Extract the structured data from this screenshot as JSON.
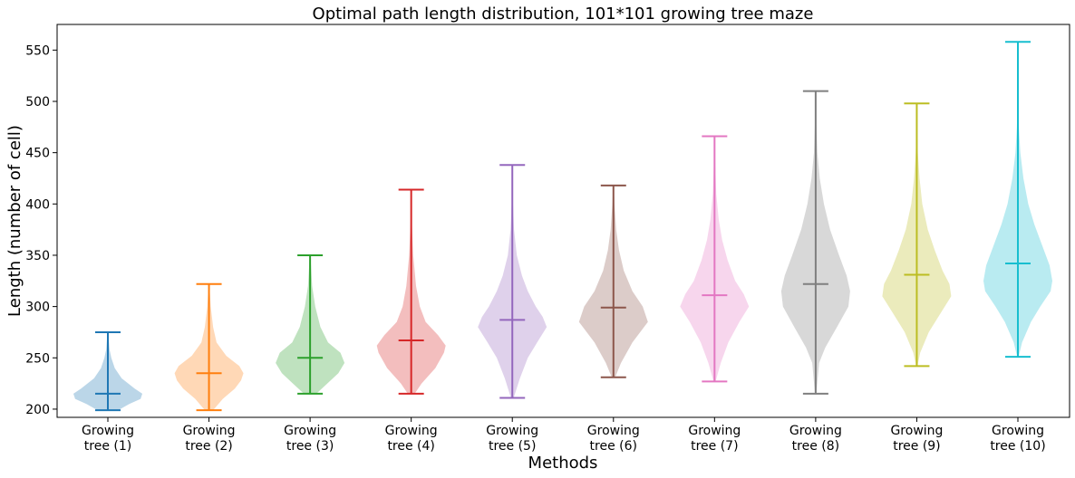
{
  "chart_data": {
    "type": "violin",
    "title": "Optimal path length distribution, 101*101 growing tree maze",
    "xlabel": "Methods",
    "ylabel": "Length (number of cell)",
    "ylim": [
      192,
      575
    ],
    "yticks": [
      200,
      250,
      300,
      350,
      400,
      450,
      500,
      550
    ],
    "grid": false,
    "categories": [
      [
        "Growing",
        "tree (1)"
      ],
      [
        "Growing",
        "tree (2)"
      ],
      [
        "Growing",
        "tree (3)"
      ],
      [
        "Growing",
        "tree (4)"
      ],
      [
        "Growing",
        "tree (5)"
      ],
      [
        "Growing",
        "tree (6)"
      ],
      [
        "Growing",
        "tree (7)"
      ],
      [
        "Growing",
        "tree (8)"
      ],
      [
        "Growing",
        "tree (9)"
      ],
      [
        "Growing",
        "tree (10)"
      ]
    ],
    "colors": [
      "#1f77b4",
      "#ff7f0e",
      "#2ca02c",
      "#d62728",
      "#9467bd",
      "#8c564b",
      "#e377c2",
      "#7f7f7f",
      "#bcbd22",
      "#17becf"
    ],
    "series": [
      {
        "min": 199,
        "max": 275,
        "mean": 215,
        "profile": [
          [
            199,
            0.3
          ],
          [
            205,
            0.62
          ],
          [
            210,
            0.95
          ],
          [
            215,
            1.0
          ],
          [
            220,
            0.78
          ],
          [
            230,
            0.4
          ],
          [
            240,
            0.2
          ],
          [
            250,
            0.1
          ],
          [
            258,
            0.05
          ],
          [
            275,
            0.01
          ]
        ]
      },
      {
        "min": 199,
        "max": 322,
        "mean": 235,
        "profile": [
          [
            199,
            0.12
          ],
          [
            210,
            0.4
          ],
          [
            220,
            0.75
          ],
          [
            228,
            0.93
          ],
          [
            235,
            1.0
          ],
          [
            242,
            0.88
          ],
          [
            252,
            0.5
          ],
          [
            265,
            0.22
          ],
          [
            280,
            0.12
          ],
          [
            300,
            0.05
          ],
          [
            322,
            0.01
          ]
        ]
      },
      {
        "min": 215,
        "max": 350,
        "mean": 250,
        "profile": [
          [
            215,
            0.18
          ],
          [
            225,
            0.5
          ],
          [
            235,
            0.82
          ],
          [
            245,
            1.0
          ],
          [
            255,
            0.88
          ],
          [
            265,
            0.52
          ],
          [
            280,
            0.3
          ],
          [
            300,
            0.15
          ],
          [
            320,
            0.06
          ],
          [
            350,
            0.01
          ]
        ]
      },
      {
        "min": 215,
        "max": 414,
        "mean": 267,
        "profile": [
          [
            215,
            0.1
          ],
          [
            225,
            0.3
          ],
          [
            240,
            0.7
          ],
          [
            255,
            0.95
          ],
          [
            262,
            1.0
          ],
          [
            272,
            0.78
          ],
          [
            285,
            0.42
          ],
          [
            300,
            0.25
          ],
          [
            320,
            0.14
          ],
          [
            350,
            0.06
          ],
          [
            380,
            0.02
          ],
          [
            414,
            0.005
          ]
        ]
      },
      {
        "min": 211,
        "max": 438,
        "mean": 287,
        "profile": [
          [
            211,
            0.04
          ],
          [
            230,
            0.22
          ],
          [
            250,
            0.45
          ],
          [
            265,
            0.72
          ],
          [
            280,
            1.0
          ],
          [
            290,
            0.88
          ],
          [
            300,
            0.68
          ],
          [
            315,
            0.45
          ],
          [
            330,
            0.28
          ],
          [
            350,
            0.13
          ],
          [
            375,
            0.05
          ],
          [
            400,
            0.02
          ],
          [
            438,
            0.005
          ]
        ]
      },
      {
        "min": 231,
        "max": 418,
        "mean": 299,
        "profile": [
          [
            231,
            0.05
          ],
          [
            245,
            0.22
          ],
          [
            265,
            0.55
          ],
          [
            285,
            1.0
          ],
          [
            300,
            0.85
          ],
          [
            315,
            0.55
          ],
          [
            335,
            0.3
          ],
          [
            355,
            0.16
          ],
          [
            375,
            0.08
          ],
          [
            400,
            0.03
          ],
          [
            418,
            0.005
          ]
        ]
      },
      {
        "min": 227,
        "max": 466,
        "mean": 311,
        "profile": [
          [
            227,
            0.03
          ],
          [
            245,
            0.18
          ],
          [
            265,
            0.4
          ],
          [
            285,
            0.72
          ],
          [
            300,
            1.0
          ],
          [
            312,
            0.85
          ],
          [
            325,
            0.6
          ],
          [
            345,
            0.38
          ],
          [
            365,
            0.22
          ],
          [
            385,
            0.12
          ],
          [
            410,
            0.05
          ],
          [
            440,
            0.02
          ],
          [
            466,
            0.003
          ]
        ]
      },
      {
        "min": 215,
        "max": 510,
        "mean": 322,
        "profile": [
          [
            215,
            0.02
          ],
          [
            245,
            0.1
          ],
          [
            260,
            0.28
          ],
          [
            280,
            0.62
          ],
          [
            300,
            0.95
          ],
          [
            315,
            1.0
          ],
          [
            330,
            0.9
          ],
          [
            350,
            0.68
          ],
          [
            375,
            0.42
          ],
          [
            400,
            0.24
          ],
          [
            425,
            0.12
          ],
          [
            450,
            0.05
          ],
          [
            480,
            0.02
          ],
          [
            510,
            0.003
          ]
        ]
      },
      {
        "min": 242,
        "max": 498,
        "mean": 331,
        "profile": [
          [
            242,
            0.02
          ],
          [
            255,
            0.1
          ],
          [
            275,
            0.35
          ],
          [
            295,
            0.72
          ],
          [
            310,
            1.0
          ],
          [
            322,
            0.95
          ],
          [
            335,
            0.75
          ],
          [
            355,
            0.52
          ],
          [
            375,
            0.32
          ],
          [
            400,
            0.16
          ],
          [
            425,
            0.08
          ],
          [
            450,
            0.03
          ],
          [
            475,
            0.01
          ],
          [
            498,
            0.003
          ]
        ]
      },
      {
        "min": 251,
        "max": 558,
        "mean": 342,
        "profile": [
          [
            251,
            0.02
          ],
          [
            265,
            0.12
          ],
          [
            285,
            0.38
          ],
          [
            300,
            0.65
          ],
          [
            315,
            0.95
          ],
          [
            325,
            1.0
          ],
          [
            340,
            0.92
          ],
          [
            360,
            0.7
          ],
          [
            380,
            0.48
          ],
          [
            400,
            0.3
          ],
          [
            425,
            0.16
          ],
          [
            450,
            0.07
          ],
          [
            475,
            0.03
          ],
          [
            500,
            0.01
          ],
          [
            558,
            0.002
          ]
        ]
      }
    ]
  }
}
